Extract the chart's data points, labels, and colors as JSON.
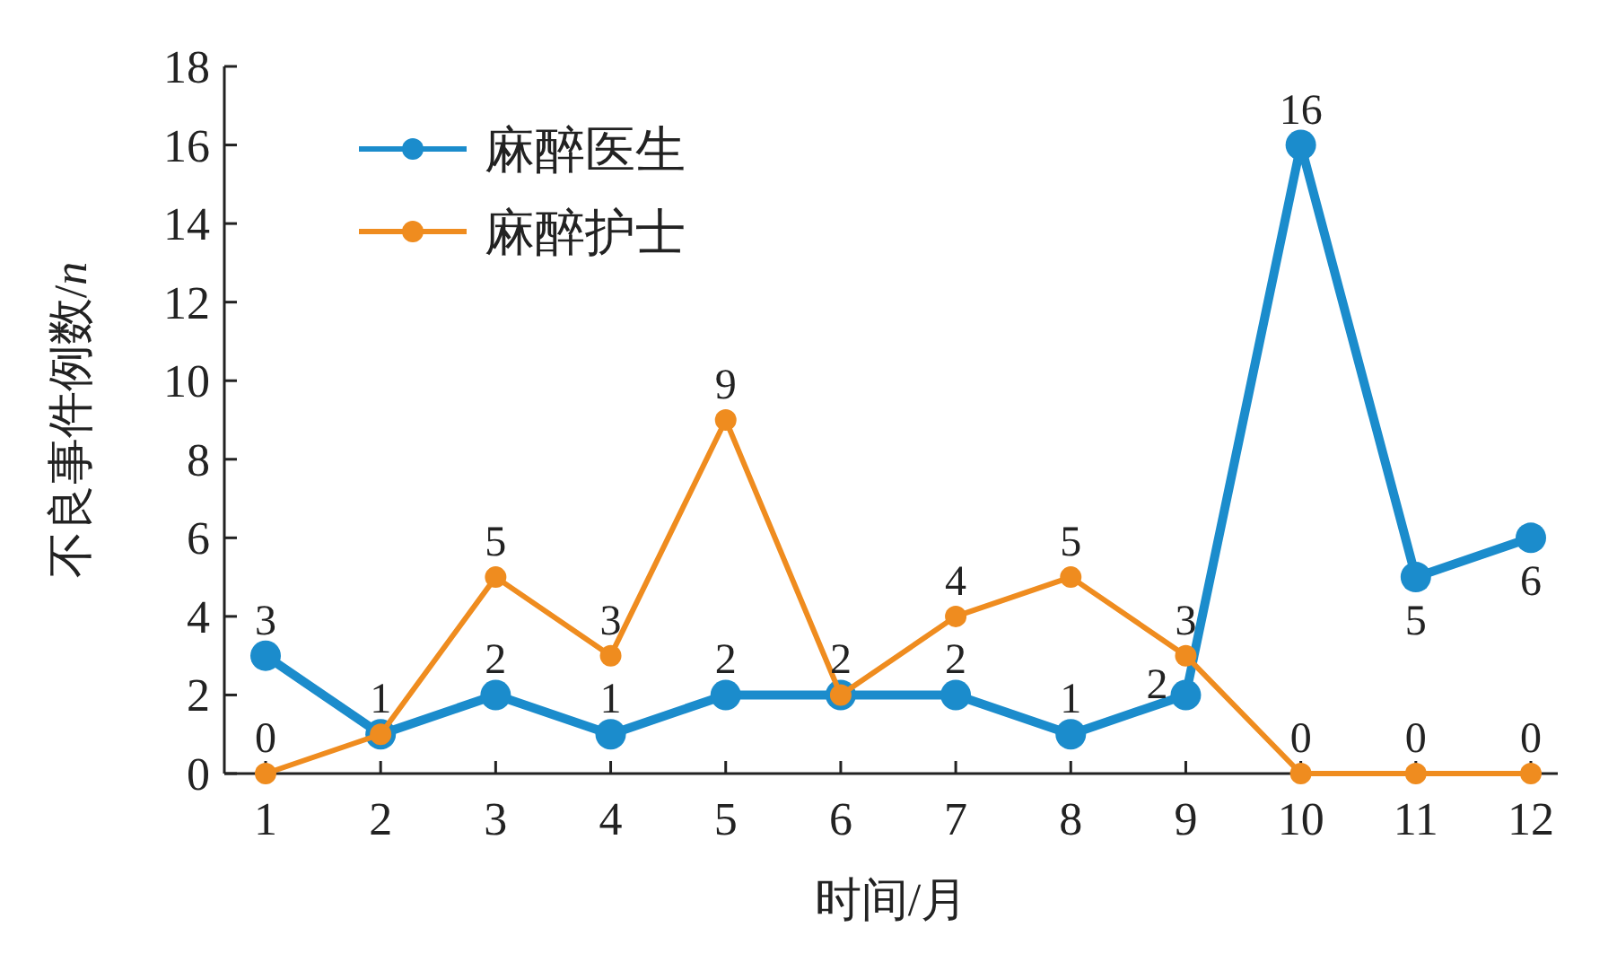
{
  "chart_data": {
    "type": "line",
    "xlabel": "时间/月",
    "ylabel": "不良事件例数/*n*",
    "categories": [
      "1",
      "2",
      "3",
      "4",
      "5",
      "6",
      "7",
      "8",
      "9",
      "10",
      "11",
      "12"
    ],
    "ylim": [
      0,
      18
    ],
    "yticks": [
      0,
      2,
      4,
      6,
      8,
      10,
      12,
      14,
      16,
      18
    ],
    "legend": "top left",
    "marker": "circle",
    "line_style": "solid",
    "grid": false,
    "series": [
      {
        "name": "麻醉医生",
        "color": "#1b8ccc",
        "values": [
          3,
          1,
          2,
          1,
          2,
          2,
          2,
          1,
          2,
          16,
          5,
          6
        ],
        "value_labels": [
          "3",
          null,
          "2",
          "1",
          "2",
          null,
          "2",
          "1",
          "2",
          "16",
          "5",
          "6"
        ]
      },
      {
        "name": "麻醉护士",
        "color": "#ef8c1f",
        "values": [
          0,
          1,
          5,
          3,
          9,
          2,
          4,
          5,
          3,
          0,
          0,
          0
        ],
        "value_labels": [
          "0",
          "1",
          "5",
          "3",
          "9",
          "2",
          "4",
          "5",
          "3",
          "0",
          "0",
          "0"
        ]
      }
    ]
  }
}
